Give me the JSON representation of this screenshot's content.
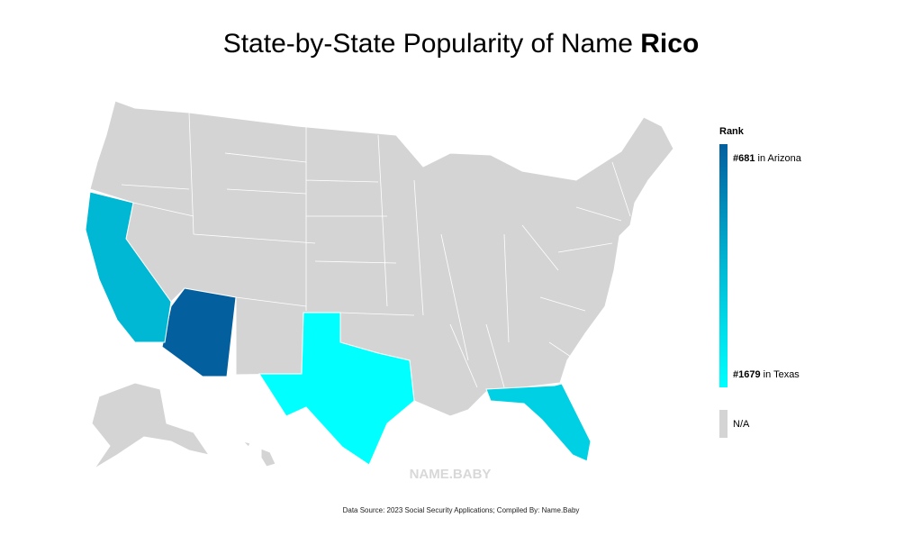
{
  "chart_data": {
    "type": "choropleth",
    "title": "State-by-State Popularity of Name",
    "title_name": "Rico",
    "values": [
      681,
      1180,
      1350,
      1679
    ],
    "color_scale": [
      "#045f9f",
      "#00b8d4",
      "#00ffff"
    ],
    "na_color": "#d4d4d4",
    "legend": {
      "title": "Rank",
      "high": {
        "rank": "#681",
        "place": "in Arizona"
      },
      "low": {
        "rank": "#1679",
        "place": "in Texas"
      },
      "na": "N/A"
    },
    "watermark": "NAME.BABY",
    "source": "Data Source: 2023 Social Security Applications; Compiled By: Name.Baby"
  }
}
